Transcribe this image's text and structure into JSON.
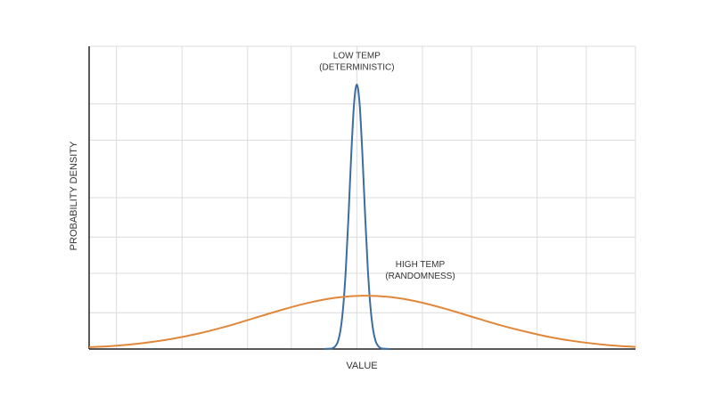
{
  "chart_data": {
    "type": "line",
    "x_label": "VALUE",
    "y_label": "PROBABILITY DENSITY",
    "annotations": [
      {
        "lines": [
          "LOW TEMP",
          "(DETERMINISTIC)"
        ]
      },
      {
        "lines": [
          "HIGH TEMP",
          "(RANDOMNESS)"
        ]
      }
    ],
    "series": [
      {
        "name": "LOW TEMP",
        "color": "#3b6e9e",
        "x": [
          -0.6,
          -0.5,
          -0.45,
          -0.4,
          -0.35,
          -0.3,
          -0.25,
          -0.2,
          -0.15,
          -0.1,
          -0.05,
          0,
          0.05,
          0.1,
          0.15,
          0.2,
          0.25,
          0.3,
          0.35,
          0.4,
          0.45,
          0.5,
          0.6
        ],
        "values": [
          0,
          0.001,
          0.002,
          0.008,
          0.023,
          0.061,
          0.138,
          0.268,
          0.449,
          0.65,
          0.812,
          0.874,
          0.812,
          0.65,
          0.449,
          0.268,
          0.138,
          0.061,
          0.023,
          0.008,
          0.002,
          0.001,
          0
        ]
      },
      {
        "name": "HIGH TEMP",
        "color": "#e0873a",
        "x": [
          -4.9,
          -4.4,
          -3.9,
          -3.4,
          -2.9,
          -2.4,
          -1.9,
          -1.4,
          -0.9,
          -0.4,
          0.1,
          0.6,
          1.1,
          1.6,
          2.1,
          2.6,
          3.1,
          3.6,
          4.1,
          4.6,
          5.1
        ],
        "values": [
          0.006,
          0.011,
          0.02,
          0.033,
          0.051,
          0.074,
          0.101,
          0.128,
          0.152,
          0.169,
          0.176,
          0.172,
          0.157,
          0.134,
          0.107,
          0.08,
          0.057,
          0.037,
          0.023,
          0.013,
          0.007
        ]
      }
    ],
    "xlim": [
      -4.9,
      5.1
    ],
    "ylim": [
      0,
      1
    ],
    "xticks": [
      -4.4,
      -3.2,
      -2,
      -1.2,
      0,
      1.2,
      2.1,
      3.3,
      4.2,
      5.1
    ],
    "yticks": [
      0.12,
      0.25,
      0.37,
      0.5,
      0.69,
      0.81,
      1
    ],
    "grid": true
  }
}
